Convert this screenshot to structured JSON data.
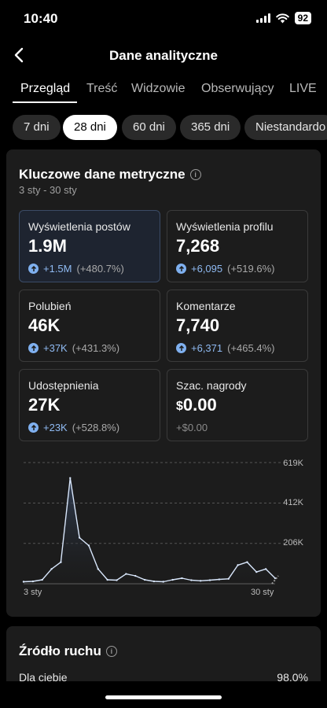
{
  "status": {
    "time": "10:40",
    "battery": "92"
  },
  "nav": {
    "title": "Dane analityczne"
  },
  "tabs": [
    {
      "label": "Przegląd"
    },
    {
      "label": "Treść"
    },
    {
      "label": "Widzowie"
    },
    {
      "label": "Obserwujący"
    },
    {
      "label": "LIVE"
    }
  ],
  "ranges": [
    {
      "label": "7 dni"
    },
    {
      "label": "28 dni"
    },
    {
      "label": "60 dni"
    },
    {
      "label": "365 dni"
    },
    {
      "label": "Niestandardo"
    }
  ],
  "metrics": {
    "title": "Kluczowe dane metryczne",
    "date_range": "3 sty - 30 sty",
    "items": [
      {
        "label": "Wyświetlenia postów",
        "value": "1.9M",
        "delta": "+1.5M",
        "pct": "(+480.7%)"
      },
      {
        "label": "Wyświetlenia profilu",
        "value": "7,268",
        "delta": "+6,095",
        "pct": "(+519.6%)"
      },
      {
        "label": "Polubień",
        "value": "46K",
        "delta": "+37K",
        "pct": "(+431.3%)"
      },
      {
        "label": "Komentarze",
        "value": "7,740",
        "delta": "+6,371",
        "pct": "(+465.4%)"
      },
      {
        "label": "Udostępnienia",
        "value": "27K",
        "delta": "+23K",
        "pct": "(+528.8%)"
      },
      {
        "label": "Szac. nagrody",
        "currency": "$",
        "value": "0.00",
        "delta_plain": "+$0.00"
      }
    ]
  },
  "chart_data": {
    "type": "area",
    "title": "",
    "x_labels": [
      "3 sty",
      "30 sty"
    ],
    "y_ticks": [
      "619K",
      "412K",
      "206K"
    ],
    "ylim": [
      0,
      619000
    ],
    "x": [
      "3 sty",
      "4 sty",
      "5 sty",
      "6 sty",
      "7 sty",
      "8 sty",
      "9 sty",
      "10 sty",
      "11 sty",
      "12 sty",
      "13 sty",
      "14 sty",
      "15 sty",
      "16 sty",
      "17 sty",
      "18 sty",
      "19 sty",
      "20 sty",
      "21 sty",
      "22 sty",
      "23 sty",
      "24 sty",
      "25 sty",
      "26 sty",
      "27 sty",
      "28 sty",
      "29 sty",
      "30 sty"
    ],
    "values": [
      10000,
      12000,
      20000,
      75000,
      110000,
      540000,
      235000,
      195000,
      75000,
      20000,
      18000,
      50000,
      40000,
      20000,
      12000,
      10000,
      20000,
      28000,
      18000,
      15000,
      18000,
      22000,
      25000,
      95000,
      110000,
      60000,
      75000,
      28000
    ],
    "grid": true
  },
  "traffic": {
    "title": "Źródło ruchu",
    "rows": [
      {
        "label": "Dla ciebie",
        "value": "98.0%"
      }
    ]
  }
}
